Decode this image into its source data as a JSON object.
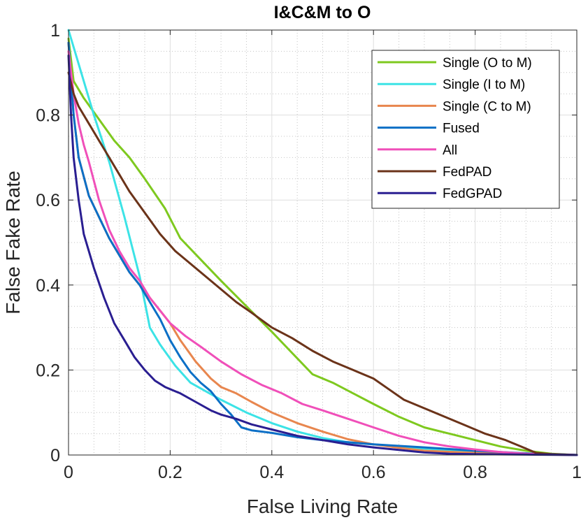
{
  "chart_data": {
    "type": "line",
    "title": "I&C&M to O",
    "xlabel": "False Living Rate",
    "ylabel": "False Fake Rate",
    "xlim": [
      0,
      1
    ],
    "ylim": [
      0,
      1
    ],
    "grid": true,
    "minor_grid": true,
    "legend_position": "top-right",
    "x_ticks": [
      {
        "value": 0,
        "label": "0"
      },
      {
        "value": 0.2,
        "label": "0.2"
      },
      {
        "value": 0.4,
        "label": "0.4"
      },
      {
        "value": 0.6,
        "label": "0.6"
      },
      {
        "value": 0.8,
        "label": "0.8"
      },
      {
        "value": 1,
        "label": "1"
      }
    ],
    "y_ticks": [
      {
        "value": 0,
        "label": "0"
      },
      {
        "value": 0.2,
        "label": "0.2"
      },
      {
        "value": 0.4,
        "label": "0.4"
      },
      {
        "value": 0.6,
        "label": "0.6"
      },
      {
        "value": 0.8,
        "label": "0.8"
      },
      {
        "value": 1,
        "label": "1"
      }
    ],
    "series": [
      {
        "name": "Single (O to M)",
        "color": "#7ec91f",
        "x": [
          0,
          0.01,
          0.03,
          0.06,
          0.09,
          0.12,
          0.15,
          0.19,
          0.22,
          0.26,
          0.3,
          0.35,
          0.4,
          0.44,
          0.48,
          0.52,
          0.56,
          0.6,
          0.65,
          0.7,
          0.75,
          0.8,
          0.85,
          0.9,
          0.95,
          1.0
        ],
        "y": [
          0.98,
          0.88,
          0.84,
          0.79,
          0.74,
          0.7,
          0.65,
          0.58,
          0.51,
          0.46,
          0.41,
          0.35,
          0.29,
          0.24,
          0.19,
          0.17,
          0.145,
          0.12,
          0.09,
          0.065,
          0.05,
          0.035,
          0.02,
          0.01,
          0.003,
          0.0
        ]
      },
      {
        "name": "Single (I to M)",
        "color": "#3ce3e6",
        "x": [
          0,
          0.02,
          0.05,
          0.08,
          0.11,
          0.14,
          0.16,
          0.18,
          0.21,
          0.24,
          0.27,
          0.3,
          0.35,
          0.4,
          0.45,
          0.5,
          0.55,
          0.6,
          0.7,
          0.8,
          0.9,
          1.0
        ],
        "y": [
          1.0,
          0.92,
          0.8,
          0.69,
          0.56,
          0.42,
          0.3,
          0.26,
          0.21,
          0.17,
          0.15,
          0.13,
          0.1,
          0.075,
          0.055,
          0.04,
          0.03,
          0.025,
          0.015,
          0.008,
          0.003,
          0.0
        ]
      },
      {
        "name": "Single (C to M)",
        "color": "#e8864e",
        "x": [
          0,
          0.01,
          0.02,
          0.04,
          0.06,
          0.08,
          0.1,
          0.12,
          0.14,
          0.16,
          0.18,
          0.2,
          0.22,
          0.25,
          0.28,
          0.3,
          0.33,
          0.36,
          0.4,
          0.45,
          0.5,
          0.55,
          0.6,
          0.65,
          0.7,
          0.8,
          0.9,
          1.0
        ],
        "y": [
          0.97,
          0.8,
          0.7,
          0.61,
          0.56,
          0.51,
          0.47,
          0.43,
          0.4,
          0.37,
          0.34,
          0.31,
          0.27,
          0.22,
          0.18,
          0.16,
          0.145,
          0.125,
          0.1,
          0.075,
          0.055,
          0.037,
          0.025,
          0.017,
          0.01,
          0.005,
          0.002,
          0.0
        ]
      },
      {
        "name": "Fused",
        "color": "#0b6fc6",
        "x": [
          0,
          0.01,
          0.02,
          0.04,
          0.06,
          0.08,
          0.1,
          0.12,
          0.14,
          0.16,
          0.18,
          0.2,
          0.22,
          0.24,
          0.26,
          0.28,
          0.3,
          0.32,
          0.34,
          0.36,
          0.4,
          0.45,
          0.5,
          0.55,
          0.6,
          0.7,
          0.8,
          0.9,
          1.0
        ],
        "y": [
          0.97,
          0.8,
          0.7,
          0.61,
          0.56,
          0.51,
          0.47,
          0.43,
          0.4,
          0.36,
          0.32,
          0.27,
          0.23,
          0.195,
          0.17,
          0.15,
          0.12,
          0.095,
          0.065,
          0.058,
          0.052,
          0.042,
          0.035,
          0.03,
          0.025,
          0.018,
          0.01,
          0.004,
          0.0
        ]
      },
      {
        "name": "All",
        "color": "#f04fb9",
        "x": [
          0,
          0.01,
          0.02,
          0.03,
          0.04,
          0.06,
          0.08,
          0.1,
          0.12,
          0.14,
          0.16,
          0.18,
          0.2,
          0.23,
          0.26,
          0.3,
          0.34,
          0.38,
          0.42,
          0.46,
          0.5,
          0.55,
          0.6,
          0.65,
          0.7,
          0.75,
          0.8,
          0.85,
          0.9,
          1.0
        ],
        "y": [
          0.95,
          0.85,
          0.78,
          0.73,
          0.69,
          0.6,
          0.53,
          0.48,
          0.44,
          0.41,
          0.37,
          0.34,
          0.31,
          0.28,
          0.255,
          0.22,
          0.19,
          0.165,
          0.145,
          0.12,
          0.105,
          0.085,
          0.065,
          0.045,
          0.03,
          0.02,
          0.013,
          0.007,
          0.003,
          0.0
        ]
      },
      {
        "name": "FedPAD",
        "color": "#6b3319",
        "x": [
          0,
          0.01,
          0.02,
          0.04,
          0.06,
          0.08,
          0.1,
          0.12,
          0.15,
          0.18,
          0.21,
          0.24,
          0.27,
          0.3,
          0.33,
          0.36,
          0.4,
          0.44,
          0.48,
          0.52,
          0.56,
          0.6,
          0.63,
          0.66,
          0.7,
          0.74,
          0.78,
          0.82,
          0.86,
          0.89,
          0.92,
          0.95,
          1.0
        ],
        "y": [
          0.9,
          0.85,
          0.82,
          0.78,
          0.74,
          0.7,
          0.66,
          0.62,
          0.57,
          0.52,
          0.48,
          0.45,
          0.42,
          0.39,
          0.36,
          0.335,
          0.3,
          0.275,
          0.245,
          0.22,
          0.2,
          0.18,
          0.155,
          0.13,
          0.11,
          0.09,
          0.07,
          0.05,
          0.035,
          0.02,
          0.005,
          0.002,
          0.0
        ]
      },
      {
        "name": "FedGPAD",
        "color": "#2a1e91",
        "x": [
          0,
          0.005,
          0.01,
          0.02,
          0.03,
          0.05,
          0.07,
          0.09,
          0.11,
          0.13,
          0.15,
          0.17,
          0.19,
          0.22,
          0.25,
          0.28,
          0.3,
          0.33,
          0.36,
          0.4,
          0.45,
          0.5,
          0.55,
          0.6,
          0.65,
          0.7,
          0.75,
          0.8,
          0.9,
          1.0
        ],
        "y": [
          0.94,
          0.8,
          0.7,
          0.6,
          0.52,
          0.44,
          0.37,
          0.31,
          0.27,
          0.23,
          0.2,
          0.175,
          0.16,
          0.145,
          0.125,
          0.105,
          0.095,
          0.085,
          0.072,
          0.06,
          0.045,
          0.035,
          0.025,
          0.018,
          0.012,
          0.006,
          0.003,
          0.002,
          0.001,
          0.0
        ]
      }
    ]
  }
}
